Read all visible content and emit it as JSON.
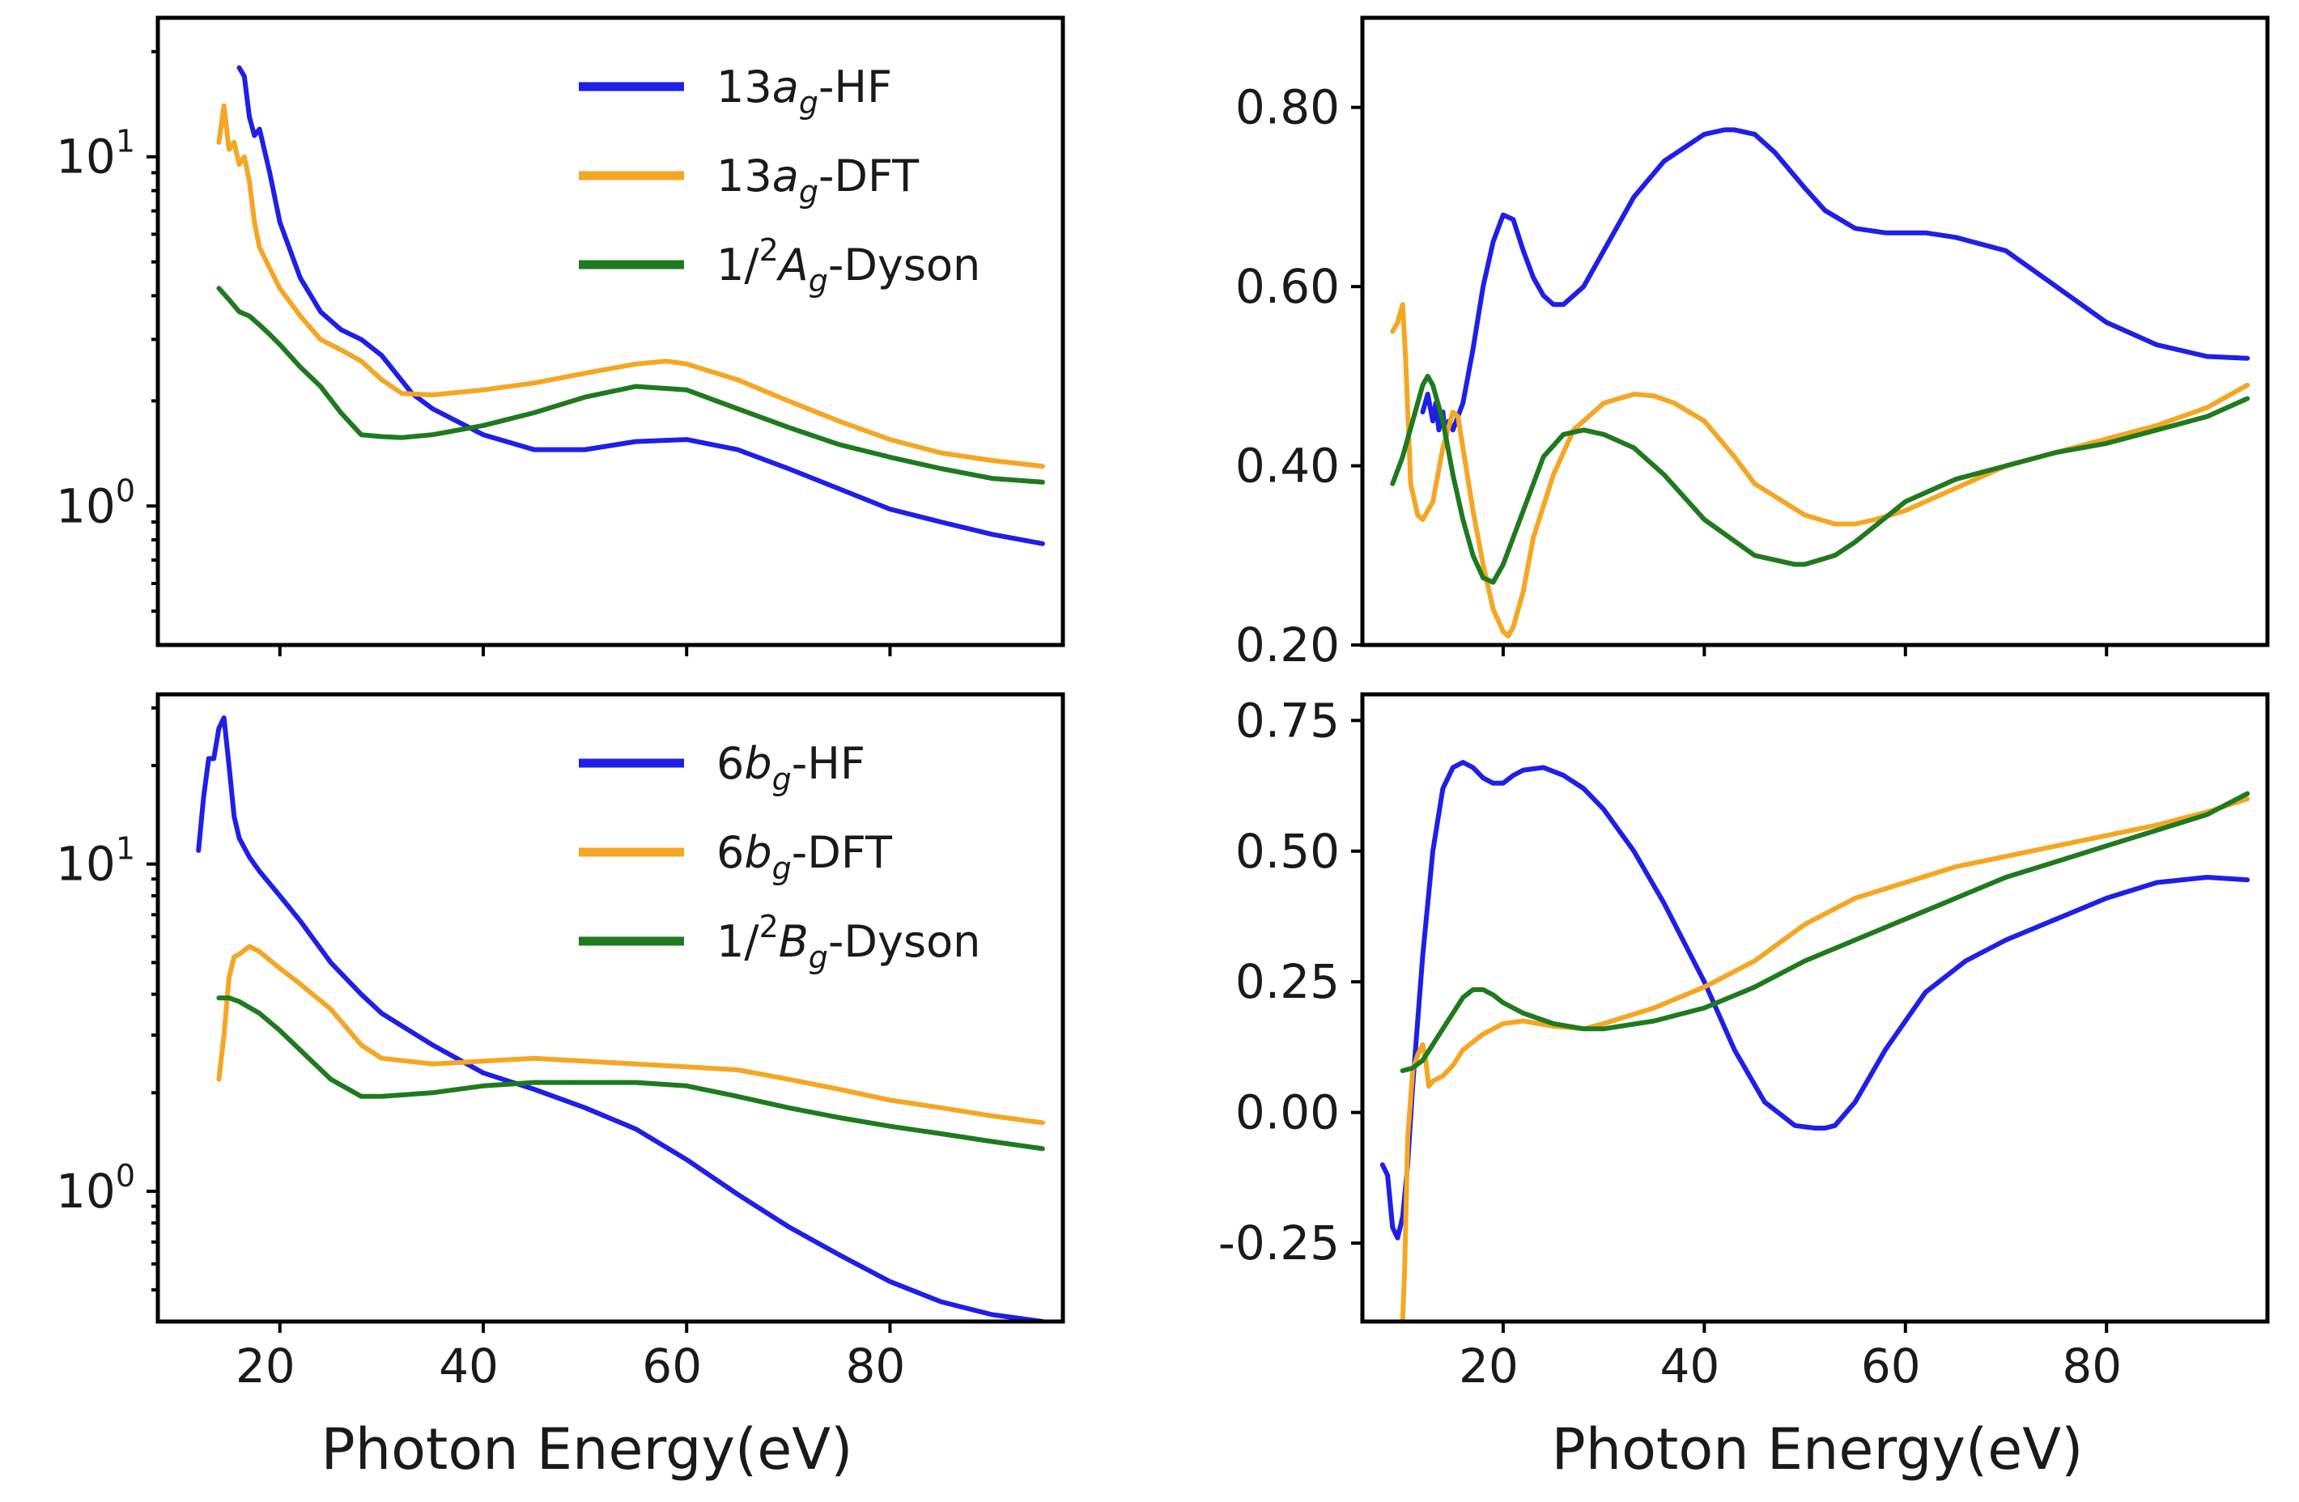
{
  "figure": {
    "xlabel": "Photon Energy(eV)",
    "colors": {
      "HF": "#1f1fe8",
      "DFT": "#f5a623",
      "Dyson": "#1f7a1f"
    }
  },
  "chart_data": [
    {
      "id": "top-left",
      "type": "line",
      "yscale": "log",
      "xlim": [
        8,
        97
      ],
      "ylim": [
        0.4,
        25
      ],
      "xticks": [
        20,
        40,
        60,
        80
      ],
      "show_xtick_labels": false,
      "yticks": [
        {
          "value": 1,
          "base": "10",
          "exp": "0"
        },
        {
          "value": 10,
          "base": "10",
          "exp": "1"
        }
      ],
      "legend": {
        "position": "upper-right",
        "entries": [
          {
            "series": "HF",
            "pre": "13",
            "italic": "a",
            "sub": "g",
            "sup": "",
            "post": "-HF"
          },
          {
            "series": "DFT",
            "pre": "13",
            "italic": "a",
            "sub": "g",
            "sup": "",
            "post": "-DFT"
          },
          {
            "series": "Dyson",
            "pre": "1/",
            "italic": "A",
            "sub": "g",
            "sup": "2",
            "post": "-Dyson"
          }
        ]
      },
      "series": [
        {
          "name": "HF",
          "x": [
            16,
            16.5,
            17,
            17.5,
            18,
            19,
            20,
            22,
            24,
            26,
            28,
            30,
            33,
            35,
            40,
            45,
            50,
            55,
            60,
            65,
            70,
            75,
            80,
            85,
            90,
            95
          ],
          "y": [
            18,
            17,
            13,
            11.5,
            12,
            9,
            6.5,
            4.5,
            3.6,
            3.2,
            3.0,
            2.7,
            2.1,
            1.9,
            1.6,
            1.45,
            1.45,
            1.53,
            1.55,
            1.45,
            1.28,
            1.12,
            0.98,
            0.9,
            0.83,
            0.78
          ]
        },
        {
          "name": "DFT",
          "x": [
            14,
            14.5,
            15,
            15.5,
            16,
            16.5,
            17,
            17.5,
            18,
            19,
            20,
            22,
            24,
            26,
            28,
            30,
            32,
            35,
            40,
            45,
            50,
            55,
            58,
            60,
            65,
            70,
            75,
            80,
            85,
            90,
            95
          ],
          "y": [
            11,
            14,
            10.5,
            11,
            9.5,
            10,
            8.5,
            6.5,
            5.5,
            4.8,
            4.2,
            3.5,
            3.0,
            2.8,
            2.6,
            2.3,
            2.1,
            2.08,
            2.15,
            2.25,
            2.4,
            2.55,
            2.6,
            2.55,
            2.3,
            2.0,
            1.75,
            1.55,
            1.42,
            1.35,
            1.3
          ]
        },
        {
          "name": "Dyson",
          "x": [
            14,
            15,
            16,
            17,
            18,
            19,
            20,
            22,
            24,
            26,
            28,
            30,
            32,
            35,
            40,
            45,
            50,
            55,
            60,
            65,
            70,
            75,
            80,
            85,
            90,
            95
          ],
          "y": [
            4.2,
            3.9,
            3.6,
            3.5,
            3.3,
            3.1,
            2.9,
            2.5,
            2.2,
            1.85,
            1.6,
            1.58,
            1.57,
            1.6,
            1.7,
            1.85,
            2.05,
            2.2,
            2.15,
            1.9,
            1.68,
            1.5,
            1.38,
            1.28,
            1.2,
            1.17
          ]
        }
      ]
    },
    {
      "id": "top-right",
      "type": "line",
      "yscale": "linear",
      "xlim": [
        6,
        96
      ],
      "ylim": [
        0.2,
        0.9
      ],
      "xticks": [
        20,
        40,
        60,
        80
      ],
      "show_xtick_labels": false,
      "yticks": [
        {
          "value": 0.2,
          "label": "0.20"
        },
        {
          "value": 0.4,
          "label": "0.40"
        },
        {
          "value": 0.6,
          "label": "0.60"
        },
        {
          "value": 0.8,
          "label": "0.80"
        }
      ],
      "series": [
        {
          "name": "HF",
          "x": [
            12,
            12.5,
            13,
            13.3,
            13.6,
            14,
            14.3,
            14.6,
            15,
            16,
            17,
            18,
            19,
            20,
            21,
            22,
            23,
            24,
            25,
            26,
            28,
            30,
            33,
            36,
            40,
            42,
            43,
            45,
            47,
            50,
            52,
            55,
            58,
            62,
            65,
            70,
            75,
            80,
            85,
            90,
            94
          ],
          "y": [
            0.46,
            0.48,
            0.45,
            0.47,
            0.44,
            0.46,
            0.43,
            0.45,
            0.44,
            0.47,
            0.53,
            0.6,
            0.65,
            0.68,
            0.675,
            0.64,
            0.61,
            0.59,
            0.58,
            0.58,
            0.6,
            0.64,
            0.7,
            0.74,
            0.77,
            0.775,
            0.775,
            0.77,
            0.75,
            0.71,
            0.685,
            0.665,
            0.66,
            0.66,
            0.655,
            0.64,
            0.6,
            0.56,
            0.535,
            0.522,
            0.52
          ]
        },
        {
          "name": "DFT",
          "x": [
            9,
            9.5,
            10,
            10.3,
            10.8,
            11.5,
            12,
            13,
            14,
            15,
            15.5,
            16,
            17,
            18,
            19,
            20,
            20.5,
            21,
            22,
            23,
            25,
            27,
            30,
            33,
            35,
            37,
            40,
            43,
            45,
            50,
            53,
            55,
            57,
            60,
            65,
            70,
            75,
            80,
            85,
            90,
            94
          ],
          "y": [
            0.55,
            0.56,
            0.58,
            0.52,
            0.38,
            0.345,
            0.34,
            0.36,
            0.42,
            0.46,
            0.455,
            0.42,
            0.35,
            0.29,
            0.24,
            0.215,
            0.21,
            0.22,
            0.26,
            0.32,
            0.39,
            0.44,
            0.47,
            0.48,
            0.478,
            0.47,
            0.45,
            0.41,
            0.38,
            0.345,
            0.335,
            0.335,
            0.34,
            0.35,
            0.375,
            0.4,
            0.415,
            0.43,
            0.445,
            0.465,
            0.49
          ]
        },
        {
          "name": "Dyson",
          "x": [
            9,
            10,
            11,
            12,
            12.5,
            13,
            14,
            15,
            16,
            17,
            18,
            19,
            20,
            22,
            24,
            26,
            28,
            30,
            33,
            36,
            40,
            45,
            49,
            50,
            53,
            55,
            60,
            65,
            70,
            75,
            80,
            85,
            90,
            94
          ],
          "y": [
            0.38,
            0.41,
            0.45,
            0.49,
            0.5,
            0.49,
            0.45,
            0.39,
            0.34,
            0.3,
            0.275,
            0.27,
            0.29,
            0.35,
            0.41,
            0.435,
            0.44,
            0.435,
            0.42,
            0.39,
            0.34,
            0.3,
            0.29,
            0.29,
            0.3,
            0.315,
            0.36,
            0.385,
            0.4,
            0.415,
            0.425,
            0.44,
            0.455,
            0.475
          ]
        }
      ]
    },
    {
      "id": "bottom-left",
      "type": "line",
      "yscale": "log",
      "xlim": [
        8,
        97
      ],
      "ylim": [
        0.4,
        33
      ],
      "xticks": [
        20,
        40,
        60,
        80
      ],
      "show_xtick_labels": true,
      "yticks": [
        {
          "value": 1,
          "base": "10",
          "exp": "0"
        },
        {
          "value": 10,
          "base": "10",
          "exp": "1"
        }
      ],
      "legend": {
        "position": "upper-right",
        "entries": [
          {
            "series": "HF",
            "pre": "6",
            "italic": "b",
            "sub": "g",
            "sup": "",
            "post": "-HF"
          },
          {
            "series": "DFT",
            "pre": "6",
            "italic": "b",
            "sub": "g",
            "sup": "",
            "post": "-DFT"
          },
          {
            "series": "Dyson",
            "pre": "1/",
            "italic": "B",
            "sub": "g",
            "sup": "2",
            "post": "-Dyson"
          }
        ]
      },
      "series": [
        {
          "name": "HF",
          "x": [
            12,
            12.5,
            13,
            13.5,
            14,
            14.5,
            15,
            15.5,
            16,
            17,
            18,
            20,
            22,
            25,
            28,
            30,
            35,
            40,
            45,
            50,
            55,
            60,
            65,
            70,
            75,
            80,
            85,
            90,
            95
          ],
          "y": [
            11,
            16,
            21,
            21,
            26,
            28,
            20,
            14,
            12,
            10.5,
            9.5,
            8,
            6.7,
            5,
            4,
            3.5,
            2.8,
            2.3,
            2.05,
            1.8,
            1.55,
            1.25,
            0.98,
            0.78,
            0.64,
            0.53,
            0.46,
            0.42,
            0.4
          ]
        },
        {
          "name": "DFT",
          "x": [
            14,
            14.5,
            15,
            15.5,
            16,
            17,
            18,
            20,
            22,
            25,
            28,
            30,
            35,
            40,
            45,
            50,
            55,
            60,
            65,
            70,
            75,
            80,
            85,
            90,
            95
          ],
          "y": [
            2.2,
            3,
            4.5,
            5.2,
            5.3,
            5.6,
            5.4,
            4.8,
            4.3,
            3.6,
            2.8,
            2.55,
            2.45,
            2.5,
            2.55,
            2.5,
            2.45,
            2.4,
            2.35,
            2.2,
            2.05,
            1.9,
            1.8,
            1.7,
            1.62
          ]
        },
        {
          "name": "Dyson",
          "x": [
            14,
            15,
            16,
            18,
            20,
            22,
            25,
            28,
            30,
            35,
            40,
            45,
            50,
            55,
            60,
            65,
            70,
            75,
            80,
            85,
            90,
            95
          ],
          "y": [
            3.9,
            3.9,
            3.8,
            3.5,
            3.1,
            2.7,
            2.2,
            1.95,
            1.95,
            2.0,
            2.1,
            2.15,
            2.15,
            2.15,
            2.1,
            1.95,
            1.8,
            1.68,
            1.58,
            1.5,
            1.42,
            1.35
          ]
        }
      ]
    },
    {
      "id": "bottom-right",
      "type": "line",
      "yscale": "linear",
      "xlim": [
        6,
        96
      ],
      "ylim": [
        -0.4,
        0.8
      ],
      "xticks": [
        20,
        40,
        60,
        80
      ],
      "show_xtick_labels": true,
      "yticks": [
        {
          "value": -0.25,
          "label": "-0.25"
        },
        {
          "value": 0,
          "label": "0.00"
        },
        {
          "value": 0.25,
          "label": "0.25"
        },
        {
          "value": 0.5,
          "label": "0.50"
        },
        {
          "value": 0.75,
          "label": "0.75"
        }
      ],
      "series": [
        {
          "name": "HF",
          "x": [
            8,
            8.5,
            9,
            9.5,
            10,
            10.5,
            11,
            12,
            13,
            14,
            15,
            16,
            17,
            18,
            19,
            20,
            21,
            22,
            24,
            26,
            28,
            30,
            33,
            36,
            40,
            43,
            46,
            49,
            51,
            52,
            53,
            55,
            58,
            62,
            66,
            70,
            75,
            80,
            85,
            90,
            94
          ],
          "y": [
            -0.1,
            -0.12,
            -0.22,
            -0.24,
            -0.2,
            -0.1,
            0.05,
            0.3,
            0.5,
            0.62,
            0.66,
            0.67,
            0.66,
            0.64,
            0.63,
            0.63,
            0.645,
            0.655,
            0.66,
            0.645,
            0.62,
            0.58,
            0.5,
            0.4,
            0.25,
            0.12,
            0.02,
            -0.025,
            -0.03,
            -0.03,
            -0.025,
            0.02,
            0.12,
            0.23,
            0.29,
            0.33,
            0.37,
            0.41,
            0.44,
            0.45,
            0.445
          ]
        },
        {
          "name": "DFT",
          "x": [
            10,
            10.2,
            10.5,
            11,
            11.5,
            12,
            12.3,
            12.6,
            13,
            14,
            15,
            16,
            18,
            20,
            22,
            25,
            28,
            30,
            35,
            40,
            45,
            50,
            55,
            60,
            65,
            70,
            75,
            80,
            85,
            90,
            94
          ],
          "y": [
            -0.4,
            -0.3,
            -0.05,
            0.08,
            0.11,
            0.13,
            0.1,
            0.05,
            0.06,
            0.07,
            0.09,
            0.12,
            0.15,
            0.17,
            0.175,
            0.165,
            0.16,
            0.17,
            0.2,
            0.24,
            0.29,
            0.36,
            0.41,
            0.44,
            0.47,
            0.49,
            0.51,
            0.53,
            0.55,
            0.575,
            0.6
          ]
        },
        {
          "name": "Dyson",
          "x": [
            10,
            11,
            12,
            13,
            14,
            15,
            16,
            17,
            18,
            19,
            20,
            22,
            25,
            28,
            30,
            35,
            40,
            45,
            50,
            55,
            60,
            65,
            70,
            75,
            80,
            85,
            90,
            94
          ],
          "y": [
            0.08,
            0.085,
            0.1,
            0.13,
            0.16,
            0.19,
            0.22,
            0.235,
            0.235,
            0.225,
            0.21,
            0.19,
            0.17,
            0.16,
            0.16,
            0.175,
            0.2,
            0.24,
            0.29,
            0.33,
            0.37,
            0.41,
            0.45,
            0.48,
            0.51,
            0.54,
            0.57,
            0.61
          ]
        }
      ]
    }
  ]
}
